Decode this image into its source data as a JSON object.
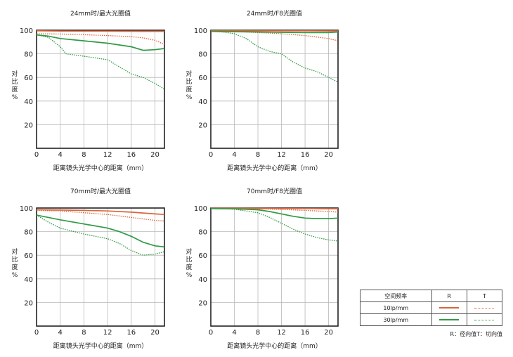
{
  "colors": {
    "R": "#d9653b",
    "T": "#2f9a44",
    "axis": "#222222",
    "grid": "#b8b8b8"
  },
  "chart_data": [
    {
      "type": "line",
      "title": "24mm时/最大光圈值",
      "xlabel": "距离镜头光学中心的距离（mm）",
      "ylabel": "对比度%",
      "xlim": [
        0,
        21.6
      ],
      "ylim": [
        0,
        100
      ],
      "xticks": [
        "0",
        "4",
        "8",
        "12",
        "16",
        "20"
      ],
      "yticks": [
        "20",
        "40",
        "60",
        "80",
        "100"
      ],
      "series": [
        {
          "name": "10lp/mm R",
          "color": "#d9653b",
          "dash": "solid",
          "x": [
            0,
            4,
            8,
            12,
            16,
            18,
            20,
            21.6
          ],
          "y": [
            99.5,
            99.3,
            99.2,
            99.2,
            99.1,
            99,
            99,
            99
          ]
        },
        {
          "name": "10lp/mm T",
          "color": "#d9653b",
          "dash": "dotted",
          "x": [
            0,
            4,
            8,
            12,
            16,
            18,
            20,
            21.6
          ],
          "y": [
            97,
            96.8,
            96.2,
            95.5,
            94.5,
            93.5,
            91.5,
            88
          ]
        },
        {
          "name": "30lp/mm R",
          "color": "#2f9a44",
          "dash": "solid",
          "x": [
            0,
            2,
            4,
            8,
            12,
            16,
            18,
            20,
            21.6
          ],
          "y": [
            96,
            95,
            93,
            91,
            89,
            86,
            83,
            83.5,
            84.5
          ]
        },
        {
          "name": "30lp/mm T",
          "color": "#2f9a44",
          "dash": "dotted",
          "x": [
            0,
            2,
            4,
            5,
            8,
            12,
            16,
            18,
            20,
            21.6
          ],
          "y": [
            96,
            94,
            86,
            80,
            78,
            75,
            63,
            60,
            55,
            50
          ]
        }
      ]
    },
    {
      "type": "line",
      "title": "24mm时/F8光圈值",
      "xlabel": "距离镜头光学中心的距离（mm）",
      "ylabel": "对比度%",
      "xlim": [
        0,
        21.6
      ],
      "ylim": [
        0,
        100
      ],
      "xticks": [
        "0",
        "4",
        "8",
        "12",
        "16",
        "20"
      ],
      "yticks": [
        "20",
        "40",
        "60",
        "80",
        "100"
      ],
      "series": [
        {
          "name": "10lp/mm R",
          "color": "#d9653b",
          "dash": "solid",
          "x": [
            0,
            4,
            8,
            12,
            16,
            20,
            21.6
          ],
          "y": [
            99.6,
            99.6,
            99.5,
            99.5,
            99.5,
            99.4,
            99.4
          ]
        },
        {
          "name": "10lp/mm T",
          "color": "#d9653b",
          "dash": "dotted",
          "x": [
            0,
            4,
            8,
            12,
            16,
            20,
            21.6
          ],
          "y": [
            99.5,
            99,
            98,
            97,
            95.5,
            93,
            91
          ]
        },
        {
          "name": "30lp/mm R",
          "color": "#2f9a44",
          "dash": "solid",
          "x": [
            0,
            4,
            8,
            12,
            16,
            20,
            21.6
          ],
          "y": [
            99,
            98.7,
            98.5,
            98.2,
            98,
            98,
            98.5
          ]
        },
        {
          "name": "30lp/mm T",
          "color": "#2f9a44",
          "dash": "dotted",
          "x": [
            0,
            2,
            4,
            6,
            8,
            10,
            12,
            14,
            16,
            18,
            20,
            21.6
          ],
          "y": [
            99,
            98.5,
            97,
            93,
            86,
            82,
            80,
            73,
            68,
            65,
            60,
            56
          ]
        }
      ]
    },
    {
      "type": "line",
      "title": "70mm时/最大光圈值",
      "xlabel": "距离镜头光学中心的距离（mm）",
      "ylabel": "对比度%",
      "xlim": [
        0,
        21.6
      ],
      "ylim": [
        0,
        100
      ],
      "xticks": [
        "0",
        "4",
        "8",
        "12",
        "16",
        "20"
      ],
      "yticks": [
        "20",
        "40",
        "60",
        "80",
        "100"
      ],
      "series": [
        {
          "name": "10lp/mm R",
          "color": "#d9653b",
          "dash": "solid",
          "x": [
            0,
            4,
            8,
            12,
            16,
            20,
            21.6
          ],
          "y": [
            98.5,
            98.3,
            98,
            97.5,
            96.5,
            95,
            94.5
          ]
        },
        {
          "name": "10lp/mm T",
          "color": "#d9653b",
          "dash": "dotted",
          "x": [
            0,
            4,
            8,
            12,
            16,
            20,
            21.6
          ],
          "y": [
            98,
            97.5,
            96,
            94.5,
            92,
            89.5,
            89
          ]
        },
        {
          "name": "30lp/mm R",
          "color": "#2f9a44",
          "dash": "solid",
          "x": [
            0,
            4,
            8,
            12,
            14,
            16,
            18,
            20,
            21.6
          ],
          "y": [
            94,
            90,
            86.5,
            83,
            80,
            76,
            71,
            68,
            67
          ]
        },
        {
          "name": "30lp/mm T",
          "color": "#2f9a44",
          "dash": "dotted",
          "x": [
            0,
            2,
            4,
            8,
            12,
            14,
            16,
            18,
            20,
            21.6
          ],
          "y": [
            94,
            88,
            83,
            78,
            74,
            70,
            64,
            60,
            61,
            63
          ]
        }
      ]
    },
    {
      "type": "line",
      "title": "70mm时/F8光圈值",
      "xlabel": "距离镜头光学中心的距离（mm）",
      "ylabel": "对比度%",
      "xlim": [
        0,
        21.6
      ],
      "ylim": [
        0,
        100
      ],
      "xticks": [
        "0",
        "4",
        "8",
        "12",
        "16",
        "20"
      ],
      "yticks": [
        "20",
        "40",
        "60",
        "80",
        "100"
      ],
      "series": [
        {
          "name": "10lp/mm R",
          "color": "#d9653b",
          "dash": "solid",
          "x": [
            0,
            4,
            8,
            12,
            16,
            20,
            21.6
          ],
          "y": [
            99.8,
            99.8,
            99.7,
            99.6,
            99.5,
            99.4,
            99.4
          ]
        },
        {
          "name": "10lp/mm T",
          "color": "#d9653b",
          "dash": "dotted",
          "x": [
            0,
            4,
            8,
            12,
            16,
            20,
            21.6
          ],
          "y": [
            99.8,
            99.7,
            99.3,
            98.8,
            98,
            97,
            96.5
          ]
        },
        {
          "name": "30lp/mm R",
          "color": "#2f9a44",
          "dash": "solid",
          "x": [
            0,
            4,
            8,
            10,
            12,
            14,
            16,
            18,
            20,
            21.6
          ],
          "y": [
            99.5,
            99.3,
            98.5,
            97,
            95,
            93,
            91.5,
            91,
            91,
            91.5
          ]
        },
        {
          "name": "30lp/mm T",
          "color": "#2f9a44",
          "dash": "dotted",
          "x": [
            0,
            4,
            8,
            10,
            12,
            14,
            16,
            18,
            20,
            21.6
          ],
          "y": [
            99.5,
            99,
            96,
            92,
            87,
            82,
            78,
            75,
            73,
            72
          ]
        }
      ]
    }
  ],
  "legend": {
    "header": [
      "空间频率",
      "R",
      "T"
    ],
    "rows": [
      {
        "label": "10lp/mm",
        "color": "#d9653b"
      },
      {
        "label": "30lp/mm",
        "color": "#2f9a44"
      }
    ],
    "note": "R：径向值T：切向值"
  }
}
